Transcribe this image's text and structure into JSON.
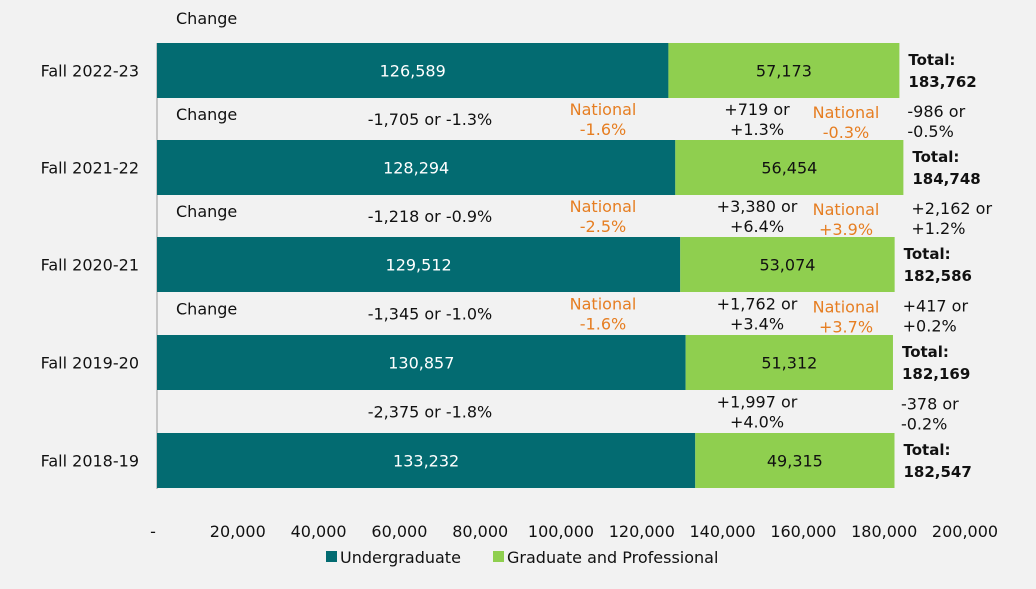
{
  "chart_data": {
    "type": "bar",
    "orientation": "horizontal",
    "stacked": true,
    "categories": [
      "Fall 2022-23",
      "Fall 2021-22",
      "Fall 2020-21",
      "Fall 2019-20",
      "Fall 2018-19"
    ],
    "series": [
      {
        "name": "Undergraduate",
        "color": "#036b71",
        "values": [
          126589,
          128294,
          129512,
          130857,
          133232
        ],
        "labels": [
          "126,589",
          "128,294",
          "129,512",
          "130,857",
          "133,232"
        ]
      },
      {
        "name": "Graduate and Professional",
        "color": "#8fcf4f",
        "values": [
          57173,
          56454,
          53074,
          51312,
          49315
        ],
        "labels": [
          "57,173",
          "56,454",
          "53,074",
          "51,312",
          "49,315"
        ]
      }
    ],
    "totals": [
      {
        "label": "Total:",
        "value": "183,762"
      },
      {
        "label": "Total:",
        "value": "184,748"
      },
      {
        "label": "Total:",
        "value": "182,586"
      },
      {
        "label": "Total:",
        "value": "182,169"
      },
      {
        "label": "Total:",
        "value": "182,547"
      }
    ],
    "xlim": [
      0,
      200000
    ],
    "xticks": [
      "-",
      "20,000",
      "40,000",
      "60,000",
      "80,000",
      "100,000",
      "120,000",
      "140,000",
      "160,000",
      "180,000",
      "200,000"
    ],
    "legend_position": "bottom",
    "annotations": {
      "top_change": "Change",
      "changes": [
        {
          "label": "Change",
          "ug": [
            "-1,705 or -1.3%"
          ],
          "ug_national": [
            "National",
            "-1.6%"
          ],
          "grad": [
            "+719 or",
            "+1.3%"
          ],
          "grad_national": [
            "National",
            "-0.3%"
          ],
          "total": [
            "-986 or",
            "-0.5%"
          ]
        },
        {
          "label": "Change",
          "ug": [
            "-1,218 or -0.9%"
          ],
          "ug_national": [
            "National",
            "-2.5%"
          ],
          "grad": [
            "+3,380 or",
            "+6.4%"
          ],
          "grad_national": [
            "National",
            "+3.9%"
          ],
          "total": [
            "+2,162 or",
            "+1.2%"
          ]
        },
        {
          "label": "Change",
          "ug": [
            "-1,345 or -1.0%"
          ],
          "ug_national": [
            "National",
            "-1.6%"
          ],
          "grad": [
            "+1,762 or",
            "+3.4%"
          ],
          "grad_national": [
            "National",
            "+3.7%"
          ],
          "total": [
            "+417 or",
            "+0.2%"
          ]
        },
        {
          "label": "",
          "ug": [
            "-2,375 or -1.8%"
          ],
          "ug_national": [],
          "grad": [
            "+1,997 or",
            "+4.0%"
          ],
          "grad_national": [],
          "total": [
            "-378 or",
            "-0.2%"
          ]
        }
      ]
    },
    "colors": {
      "background": "#f2f2f2",
      "national": "#e67e22",
      "text": "#111111",
      "white_label": "#ffffff"
    }
  }
}
